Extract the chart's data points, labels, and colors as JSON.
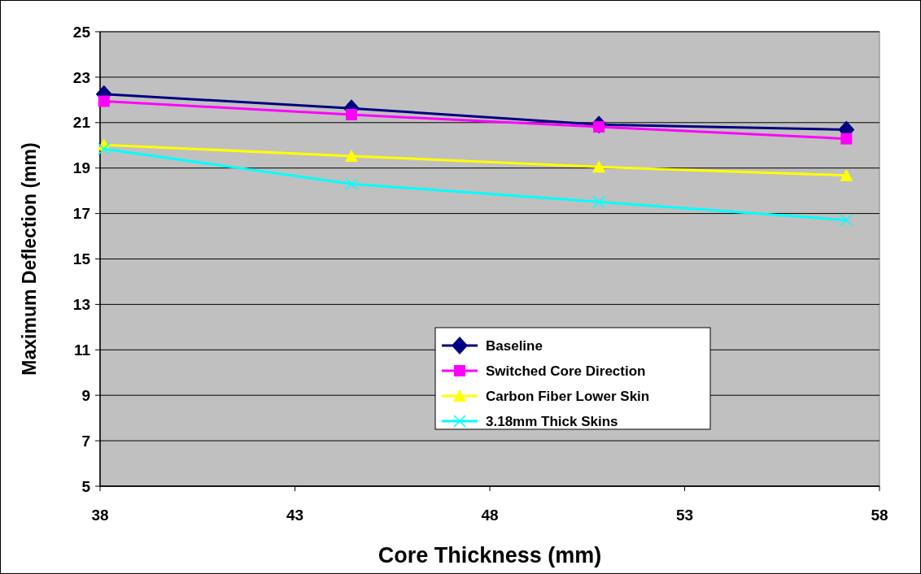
{
  "chart_data": {
    "type": "line",
    "xlabel": "Core Thickness (mm)",
    "ylabel": "Maximum Deflection (mm)",
    "x": [
      38.1,
      44.45,
      50.8,
      57.15
    ],
    "xlim": [
      38,
      58
    ],
    "xticks": [
      38,
      43,
      48,
      53,
      58
    ],
    "ylim": [
      5,
      25
    ],
    "yticks": [
      5,
      7,
      9,
      11,
      13,
      15,
      17,
      19,
      21,
      23,
      25
    ],
    "grid": "y",
    "legend": "bottom",
    "series": [
      {
        "name": "Baseline",
        "color": "#000080",
        "marker": "diamond",
        "values": [
          22.25,
          21.63,
          20.91,
          20.69
        ]
      },
      {
        "name": "Switched Core Direction",
        "color": "#ff00ff",
        "marker": "square",
        "values": [
          21.94,
          21.35,
          20.81,
          20.29
        ]
      },
      {
        "name": "Carbon Fiber Lower Skin",
        "color": "#ffff00",
        "marker": "triangle",
        "values": [
          20.02,
          19.53,
          19.05,
          18.68
        ]
      },
      {
        "name": "3.18mm Thick Skins",
        "color": "#00ffff",
        "marker": "cross",
        "values": [
          19.84,
          18.3,
          17.51,
          16.71
        ]
      }
    ]
  }
}
